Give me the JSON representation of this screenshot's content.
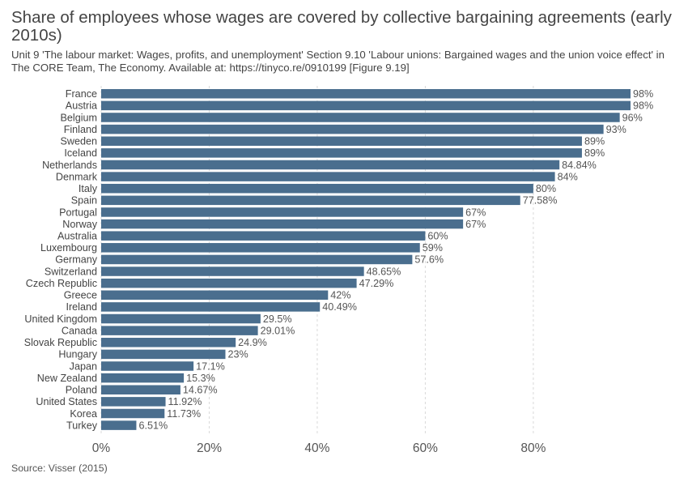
{
  "title": "Share of employees whose wages are covered by collective bargaining agreements (early 2010s)",
  "subtitle": "Unit 9 'The labour market: Wages, profits, and unemployment' Section 9.10 'Labour unions: Bargained wages and the union voice effect' in The CORE Team, The Economy. Available at: https://tinyco.re/0910199 [Figure 9.19]",
  "source": "Source: Visser (2015)",
  "colors": {
    "bar": "#4a6e8e",
    "grid": "#d9d9d9",
    "text": "#444444"
  },
  "chart_data": {
    "type": "bar",
    "orientation": "horizontal",
    "title": "Share of employees whose wages are covered by collective bargaining agreements (early 2010s)",
    "xlabel": "",
    "ylabel": "",
    "xlim": [
      0,
      98
    ],
    "grid": "vertical dashed",
    "x_ticks": [
      {
        "value": 0,
        "label": "0%"
      },
      {
        "value": 20,
        "label": "20%"
      },
      {
        "value": 40,
        "label": "40%"
      },
      {
        "value": 60,
        "label": "60%"
      },
      {
        "value": 80,
        "label": "80%"
      }
    ],
    "categories": [
      "France",
      "Austria",
      "Belgium",
      "Finland",
      "Sweden",
      "Iceland",
      "Netherlands",
      "Denmark",
      "Italy",
      "Spain",
      "Portugal",
      "Norway",
      "Australia",
      "Luxembourg",
      "Germany",
      "Switzerland",
      "Czech Republic",
      "Greece",
      "Ireland",
      "United Kingdom",
      "Canada",
      "Slovak Republic",
      "Hungary",
      "Japan",
      "New Zealand",
      "Poland",
      "United States",
      "Korea",
      "Turkey"
    ],
    "values": [
      98,
      98,
      96,
      93,
      89,
      89,
      84.84,
      84,
      80,
      77.58,
      67,
      67,
      60,
      59,
      57.6,
      48.65,
      47.29,
      42,
      40.49,
      29.5,
      29.01,
      24.9,
      23,
      17.1,
      15.3,
      14.67,
      11.92,
      11.73,
      6.51
    ],
    "value_labels": [
      "98%",
      "98%",
      "96%",
      "93%",
      "89%",
      "89%",
      "84.84%",
      "84%",
      "80%",
      "77.58%",
      "67%",
      "67%",
      "60%",
      "59%",
      "57.6%",
      "48.65%",
      "47.29%",
      "42%",
      "40.49%",
      "29.5%",
      "29.01%",
      "24.9%",
      "23%",
      "17.1%",
      "15.3%",
      "14.67%",
      "11.92%",
      "11.73%",
      "6.51%"
    ]
  }
}
